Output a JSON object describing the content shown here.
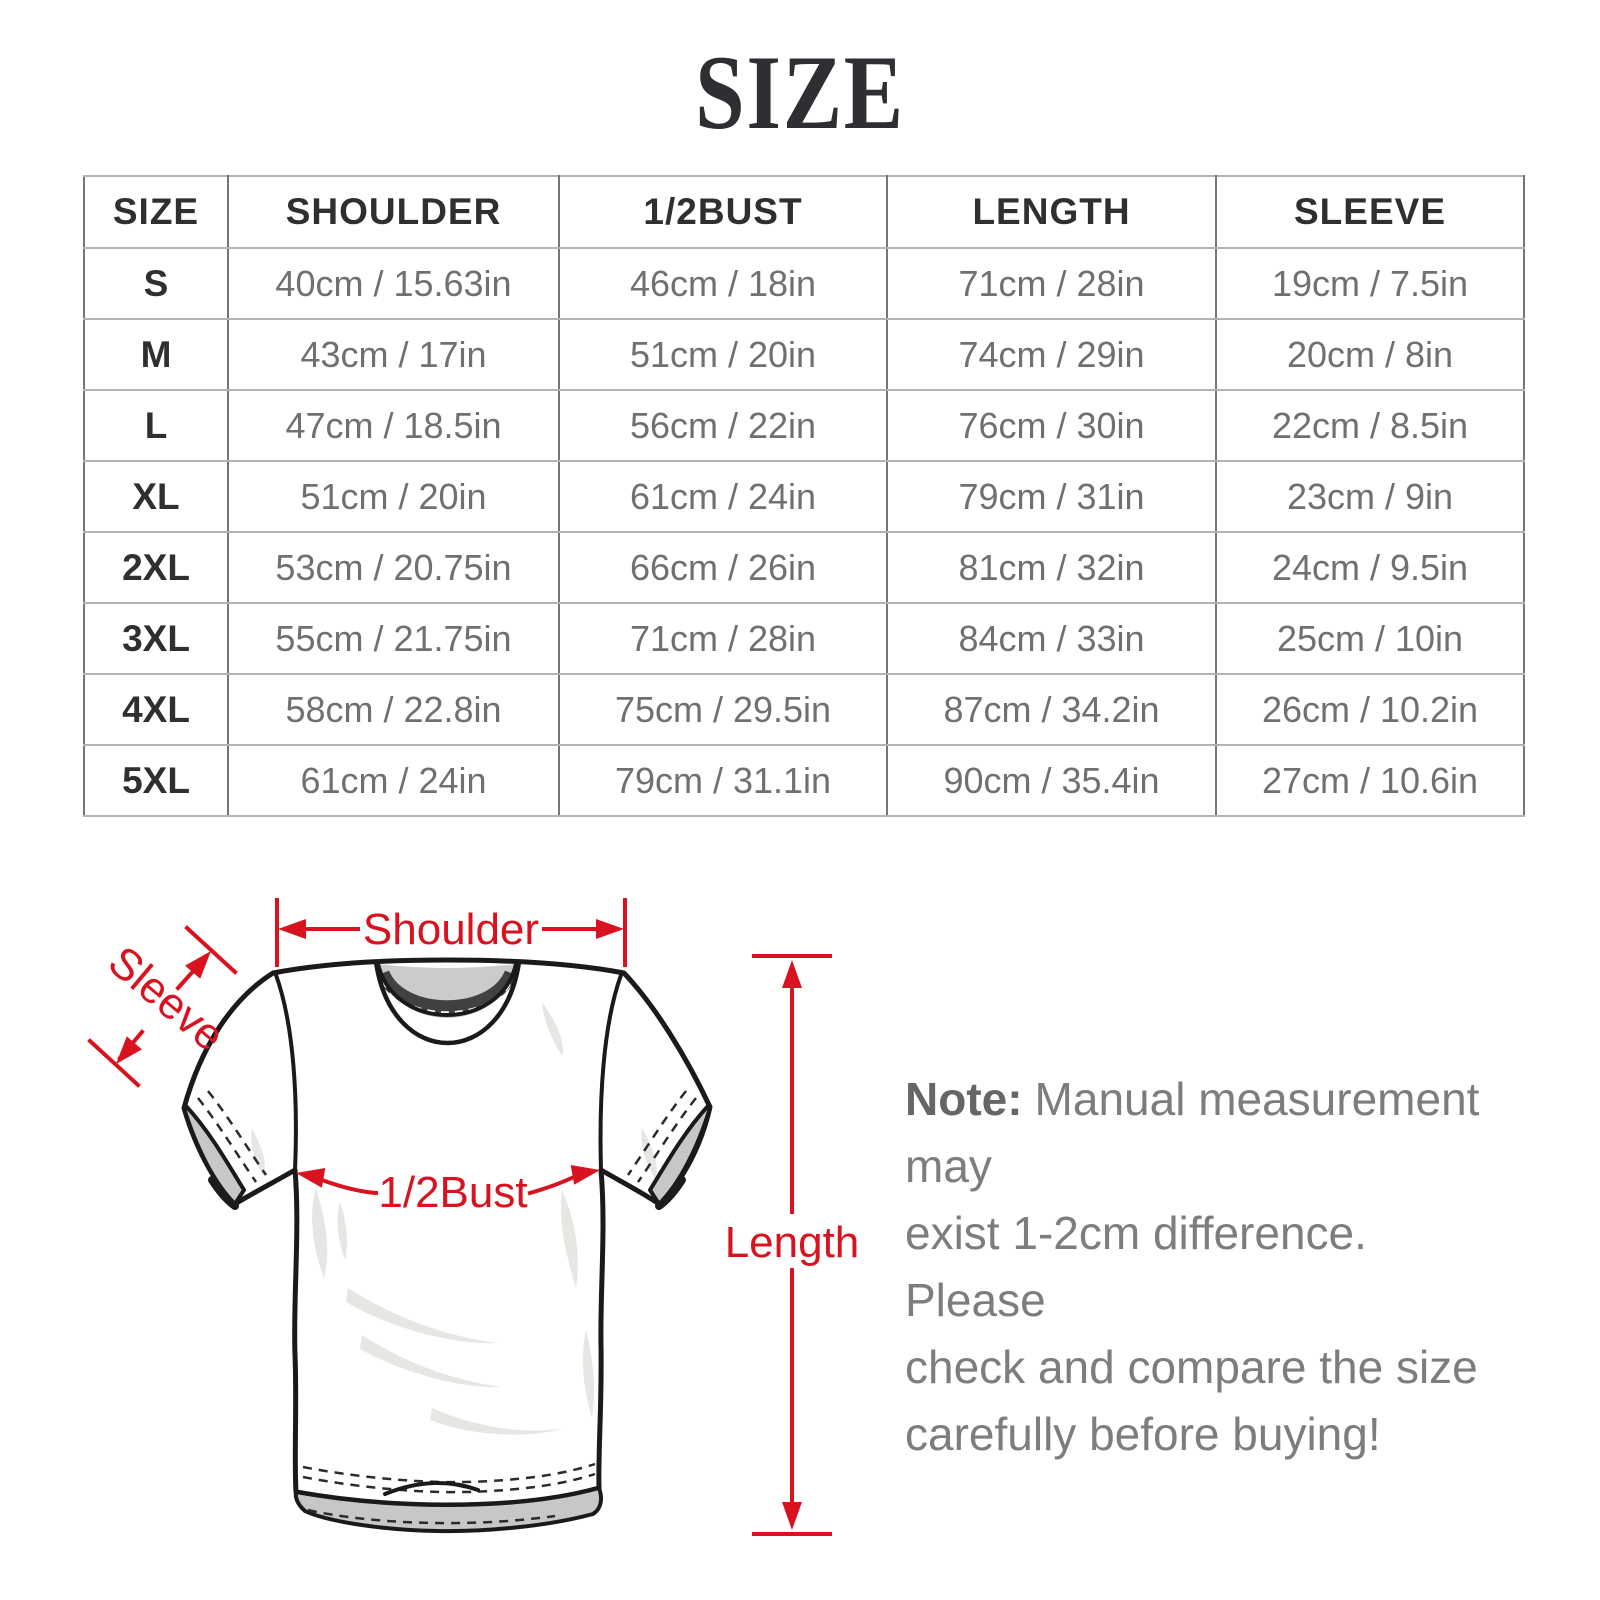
{
  "title": "SIZE",
  "table": {
    "headers": [
      "SIZE",
      "SHOULDER",
      "1/2BUST",
      "LENGTH",
      "SLEEVE"
    ],
    "rows": [
      [
        "S",
        "40cm / 15.63in",
        "46cm / 18in",
        "71cm / 28in",
        "19cm / 7.5in"
      ],
      [
        "M",
        "43cm / 17in",
        "51cm / 20in",
        "74cm / 29in",
        "20cm / 8in"
      ],
      [
        "L",
        "47cm / 18.5in",
        "56cm / 22in",
        "76cm / 30in",
        "22cm / 8.5in"
      ],
      [
        "XL",
        "51cm / 20in",
        "61cm / 24in",
        "79cm / 31in",
        "23cm / 9in"
      ],
      [
        "2XL",
        "53cm / 20.75in",
        "66cm / 26in",
        "81cm / 32in",
        "24cm / 9.5in"
      ],
      [
        "3XL",
        "55cm / 21.75in",
        "71cm / 28in",
        "84cm / 33in",
        "25cm / 10in"
      ],
      [
        "4XL",
        "58cm / 22.8in",
        "75cm / 29.5in",
        "87cm / 34.2in",
        "26cm / 10.2in"
      ],
      [
        "5XL",
        "61cm / 24in",
        "79cm / 31.1in",
        "90cm / 35.4in",
        "27cm / 10.6in"
      ]
    ]
  },
  "diagram": {
    "labels": {
      "shoulder": "Shoulder",
      "sleeve": "Sleeve",
      "bust": "1/2Bust",
      "length": "Length"
    },
    "annotation_color": "#d9121f"
  },
  "note": {
    "prefix": "Note:",
    "lines": [
      "Manual measurement may",
      "exist 1-2cm difference. Please",
      "check and compare the size",
      "carefully before buying!"
    ]
  }
}
